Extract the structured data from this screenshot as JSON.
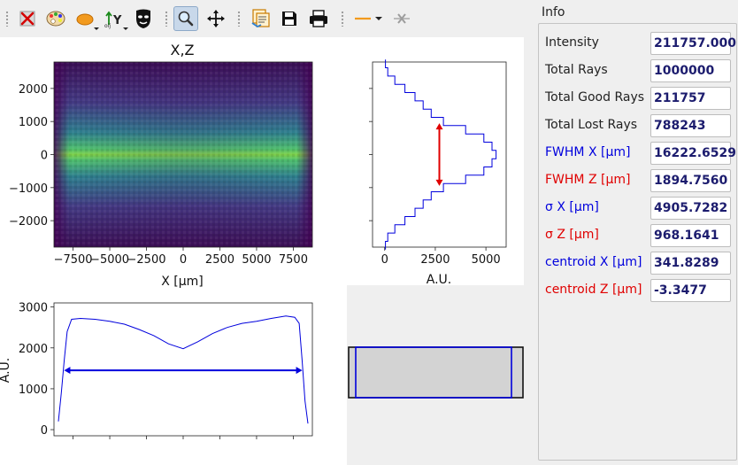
{
  "toolbar": {
    "buttons": [
      {
        "icon": "clear-x-icon"
      },
      {
        "icon": "palette-icon"
      },
      {
        "icon": "ellipse-shape-icon"
      },
      {
        "icon": "aspect-y-icon"
      },
      {
        "icon": "mask-icon"
      },
      {
        "icon": "zoom-icon"
      },
      {
        "icon": "pan-move-icon"
      },
      {
        "icon": "export-icon"
      },
      {
        "icon": "save-icon"
      },
      {
        "icon": "print-icon"
      },
      {
        "icon": "line-style-icon"
      },
      {
        "icon": "line-style-x-icon"
      }
    ]
  },
  "plot": {
    "title": "X,Z",
    "main_xlabel": "X [μm]",
    "side_xlabel": "A.U.",
    "bottom_ylabel": "A.U.",
    "colors": {
      "fwhm_z_marker": "#e00000",
      "fwhm_x_marker": "#0000dd",
      "histogram": "#0000dd"
    }
  },
  "chart_data": [
    {
      "type": "heatmap",
      "title": "X,Z",
      "xlabel": "X [μm]",
      "ylabel": "",
      "xlim": [
        -8800,
        8800
      ],
      "ylim": [
        -2800,
        2800
      ],
      "x_ticks": [
        "−7500",
        "−5000",
        "−2500",
        "0",
        "2500",
        "5000",
        "7500"
      ],
      "y_ticks": [
        "2000",
        "1000",
        "0",
        "−1000",
        "−2000"
      ],
      "colormap": "viridis"
    },
    {
      "type": "line",
      "orientation": "horizontal",
      "xlabel": "A.U.",
      "xlim": [
        -600,
        6000
      ],
      "ylim": [
        -2800,
        2800
      ],
      "x_ticks": [
        "0",
        "2500",
        "5000"
      ],
      "z": [
        -2750,
        -2500,
        -2250,
        -2000,
        -1750,
        -1500,
        -1250,
        -1000,
        -750,
        -500,
        -250,
        0,
        250,
        500,
        750,
        1000,
        1250,
        1500,
        1750,
        2000,
        2250,
        2500,
        2750
      ],
      "values": [
        40,
        150,
        500,
        1000,
        1500,
        1900,
        2300,
        2900,
        4000,
        4900,
        5300,
        5500,
        5300,
        4900,
        4000,
        2900,
        2300,
        1900,
        1500,
        1000,
        500,
        150,
        40
      ],
      "fwhm_marker_z": [
        -947,
        947
      ]
    },
    {
      "type": "line",
      "ylabel": "A.U.",
      "xlim": [
        -8800,
        8800
      ],
      "ylim": [
        -150,
        3100
      ],
      "y_ticks": [
        "3000",
        "2000",
        "1000",
        "0"
      ],
      "x": [
        -8500,
        -8300,
        -8100,
        -7900,
        -7600,
        -7000,
        -6000,
        -5000,
        -4000,
        -3000,
        -2000,
        -1000,
        0,
        1000,
        2000,
        3000,
        4000,
        5000,
        6000,
        7000,
        7600,
        7900,
        8100,
        8300,
        8500
      ],
      "values": [
        200,
        900,
        1700,
        2400,
        2700,
        2720,
        2700,
        2650,
        2580,
        2450,
        2300,
        2100,
        1980,
        2150,
        2350,
        2500,
        2600,
        2650,
        2720,
        2780,
        2750,
        2600,
        1700,
        700,
        150
      ],
      "fwhm_marker_x": [
        -8111,
        8111
      ]
    }
  ],
  "info": {
    "title": "Info",
    "rows": [
      {
        "label": "Intensity",
        "value": "211757.000",
        "color": "#222222"
      },
      {
        "label": "Total Rays",
        "value": "1000000",
        "color": "#222222"
      },
      {
        "label": "Total Good Rays",
        "value": "211757",
        "color": "#222222"
      },
      {
        "label": "Total Lost Rays",
        "value": "788243",
        "color": "#222222"
      },
      {
        "label": "FWHM X [μm]",
        "value": "16222.6529",
        "color": "#0000dd"
      },
      {
        "label": "FWHM Z [μm]",
        "value": "1894.7560",
        "color": "#e00000"
      },
      {
        "label": "σ X [μm]",
        "value": "4905.7282",
        "color": "#0000dd"
      },
      {
        "label": "σ Z [μm]",
        "value": "968.1641",
        "color": "#e00000"
      },
      {
        "label": "centroid X [μm]",
        "value": "341.8289",
        "color": "#0000dd"
      },
      {
        "label": "centroid Z [μm]",
        "value": "-3.3477",
        "color": "#e00000"
      }
    ]
  }
}
